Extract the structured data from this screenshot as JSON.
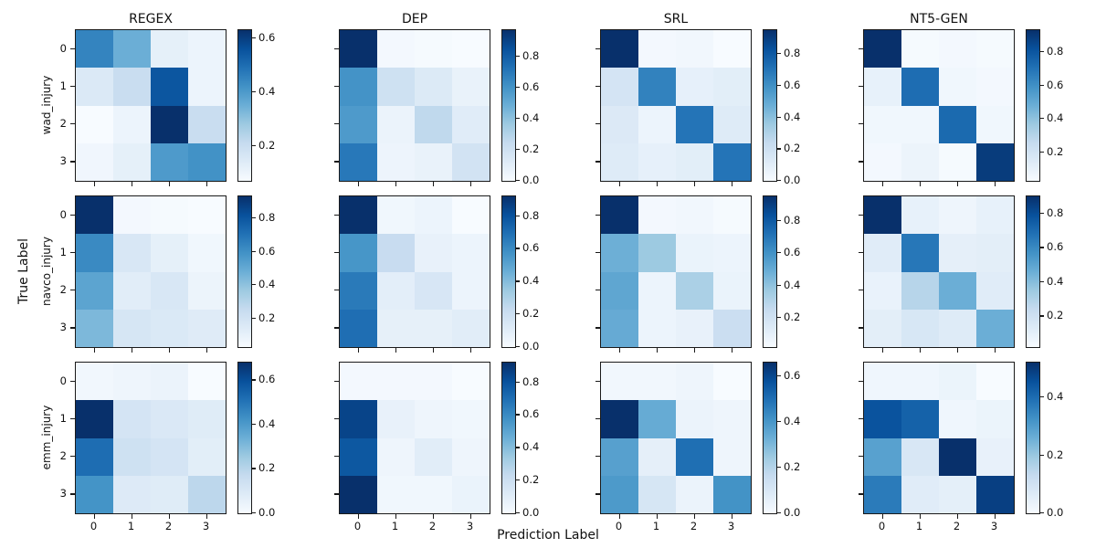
{
  "figure": {
    "xlabel": "Prediction Label",
    "ylabel": "True Label"
  },
  "chart_data": {
    "type": "heatmap",
    "subtype": "confusion-matrix-grid",
    "grid": "3 rows x 4 columns, each panel a 4x4 row-normalized confusion matrix with its own colorbar",
    "colormap": "Blues",
    "colormap_hex_range": [
      "#f7fbff",
      "#08306b"
    ],
    "column_titles": [
      "REGEX",
      "DEP",
      "SRL",
      "NT5-GEN"
    ],
    "row_titles": [
      "wad_injury",
      "navco_injury",
      "emm_injury"
    ],
    "xlabel": "Prediction Label",
    "ylabel": "True Label",
    "x_tick_labels": [
      "0",
      "1",
      "2",
      "3"
    ],
    "y_tick_labels": [
      "0",
      "1",
      "2",
      "3"
    ],
    "panels": [
      {
        "dataset": "wad_injury",
        "model": "REGEX",
        "vmin": 0.07,
        "vmax": 0.63,
        "colorbar_ticks": [
          0.6,
          0.4,
          0.2
        ],
        "matrix": [
          [
            0.45,
            0.35,
            0.12,
            0.1
          ],
          [
            0.15,
            0.2,
            0.55,
            0.1
          ],
          [
            0.07,
            0.1,
            0.63,
            0.2
          ],
          [
            0.09,
            0.12,
            0.4,
            0.42
          ]
        ]
      },
      {
        "dataset": "wad_injury",
        "model": "DEP",
        "vmin": 0.0,
        "vmax": 0.97,
        "colorbar_ticks": [
          0.8,
          0.6,
          0.4,
          0.2,
          0.0
        ],
        "matrix": [
          [
            0.97,
            0.02,
            0.01,
            0.0
          ],
          [
            0.6,
            0.2,
            0.13,
            0.07
          ],
          [
            0.57,
            0.06,
            0.26,
            0.11
          ],
          [
            0.7,
            0.05,
            0.07,
            0.18
          ]
        ]
      },
      {
        "dataset": "wad_injury",
        "model": "SRL",
        "vmin": 0.0,
        "vmax": 0.95,
        "colorbar_ticks": [
          0.8,
          0.6,
          0.4,
          0.2,
          0.0
        ],
        "matrix": [
          [
            0.95,
            0.02,
            0.03,
            0.0
          ],
          [
            0.17,
            0.65,
            0.08,
            0.1
          ],
          [
            0.13,
            0.05,
            0.7,
            0.12
          ],
          [
            0.12,
            0.08,
            0.1,
            0.7
          ]
        ]
      },
      {
        "dataset": "wad_injury",
        "model": "NT5-GEN",
        "vmin": 0.03,
        "vmax": 0.93,
        "colorbar_ticks": [
          0.8,
          0.6,
          0.4,
          0.2
        ],
        "matrix": [
          [
            0.93,
            0.04,
            0.05,
            0.04
          ],
          [
            0.1,
            0.72,
            0.06,
            0.05
          ],
          [
            0.06,
            0.06,
            0.73,
            0.06
          ],
          [
            0.05,
            0.08,
            0.04,
            0.89
          ]
        ]
      },
      {
        "dataset": "navco_injury",
        "model": "REGEX",
        "vmin": 0.03,
        "vmax": 0.93,
        "colorbar_ticks": [
          0.8,
          0.6,
          0.4,
          0.2
        ],
        "matrix": [
          [
            0.93,
            0.05,
            0.04,
            0.03
          ],
          [
            0.62,
            0.17,
            0.11,
            0.06
          ],
          [
            0.52,
            0.13,
            0.17,
            0.08
          ],
          [
            0.44,
            0.18,
            0.16,
            0.14
          ]
        ]
      },
      {
        "dataset": "navco_injury",
        "model": "DEP",
        "vmin": 0.0,
        "vmax": 0.92,
        "colorbar_ticks": [
          0.8,
          0.6,
          0.4,
          0.2,
          0.0
        ],
        "matrix": [
          [
            0.92,
            0.03,
            0.05,
            0.0
          ],
          [
            0.56,
            0.22,
            0.07,
            0.05
          ],
          [
            0.66,
            0.09,
            0.15,
            0.05
          ],
          [
            0.7,
            0.08,
            0.08,
            0.1
          ]
        ]
      },
      {
        "dataset": "navco_injury",
        "model": "SRL",
        "vmin": 0.02,
        "vmax": 0.95,
        "colorbar_ticks": [
          0.8,
          0.6,
          0.4,
          0.2
        ],
        "matrix": [
          [
            0.95,
            0.04,
            0.05,
            0.03
          ],
          [
            0.48,
            0.37,
            0.08,
            0.07
          ],
          [
            0.52,
            0.07,
            0.33,
            0.08
          ],
          [
            0.5,
            0.07,
            0.09,
            0.23
          ]
        ]
      },
      {
        "dataset": "navco_injury",
        "model": "NT5-GEN",
        "vmin": 0.02,
        "vmax": 0.9,
        "colorbar_ticks": [
          0.8,
          0.6,
          0.4,
          0.2
        ],
        "matrix": [
          [
            0.9,
            0.09,
            0.06,
            0.09
          ],
          [
            0.12,
            0.66,
            0.1,
            0.11
          ],
          [
            0.08,
            0.28,
            0.46,
            0.12
          ],
          [
            0.11,
            0.16,
            0.13,
            0.46
          ]
        ]
      },
      {
        "dataset": "emm_injury",
        "model": "REGEX",
        "vmin": 0.0,
        "vmax": 0.68,
        "colorbar_ticks": [
          0.6,
          0.4,
          0.2,
          0.0
        ],
        "matrix": [
          [
            0.02,
            0.03,
            0.04,
            0.0
          ],
          [
            0.68,
            0.12,
            0.1,
            0.08
          ],
          [
            0.52,
            0.14,
            0.12,
            0.07
          ],
          [
            0.42,
            0.09,
            0.08,
            0.19
          ]
        ]
      },
      {
        "dataset": "emm_injury",
        "model": "DEP",
        "vmin": 0.0,
        "vmax": 0.92,
        "colorbar_ticks": [
          0.8,
          0.6,
          0.4,
          0.2,
          0.0
        ],
        "matrix": [
          [
            0.02,
            0.02,
            0.02,
            0.0
          ],
          [
            0.85,
            0.07,
            0.04,
            0.03
          ],
          [
            0.78,
            0.04,
            0.1,
            0.04
          ],
          [
            0.92,
            0.03,
            0.03,
            0.06
          ]
        ]
      },
      {
        "dataset": "emm_injury",
        "model": "SRL",
        "vmin": 0.0,
        "vmax": 0.66,
        "colorbar_ticks": [
          0.6,
          0.4,
          0.2,
          0.0
        ],
        "matrix": [
          [
            0.02,
            0.02,
            0.03,
            0.0
          ],
          [
            0.66,
            0.34,
            0.04,
            0.03
          ],
          [
            0.37,
            0.06,
            0.5,
            0.03
          ],
          [
            0.39,
            0.11,
            0.04,
            0.41
          ]
        ]
      },
      {
        "dataset": "emm_injury",
        "model": "NT5-GEN",
        "vmin": 0.0,
        "vmax": 0.52,
        "colorbar_ticks": [
          0.4,
          0.2,
          0.0
        ],
        "matrix": [
          [
            0.02,
            0.02,
            0.03,
            0.0
          ],
          [
            0.45,
            0.42,
            0.02,
            0.03
          ],
          [
            0.29,
            0.08,
            0.52,
            0.04
          ],
          [
            0.37,
            0.06,
            0.05,
            0.49
          ]
        ]
      }
    ]
  }
}
